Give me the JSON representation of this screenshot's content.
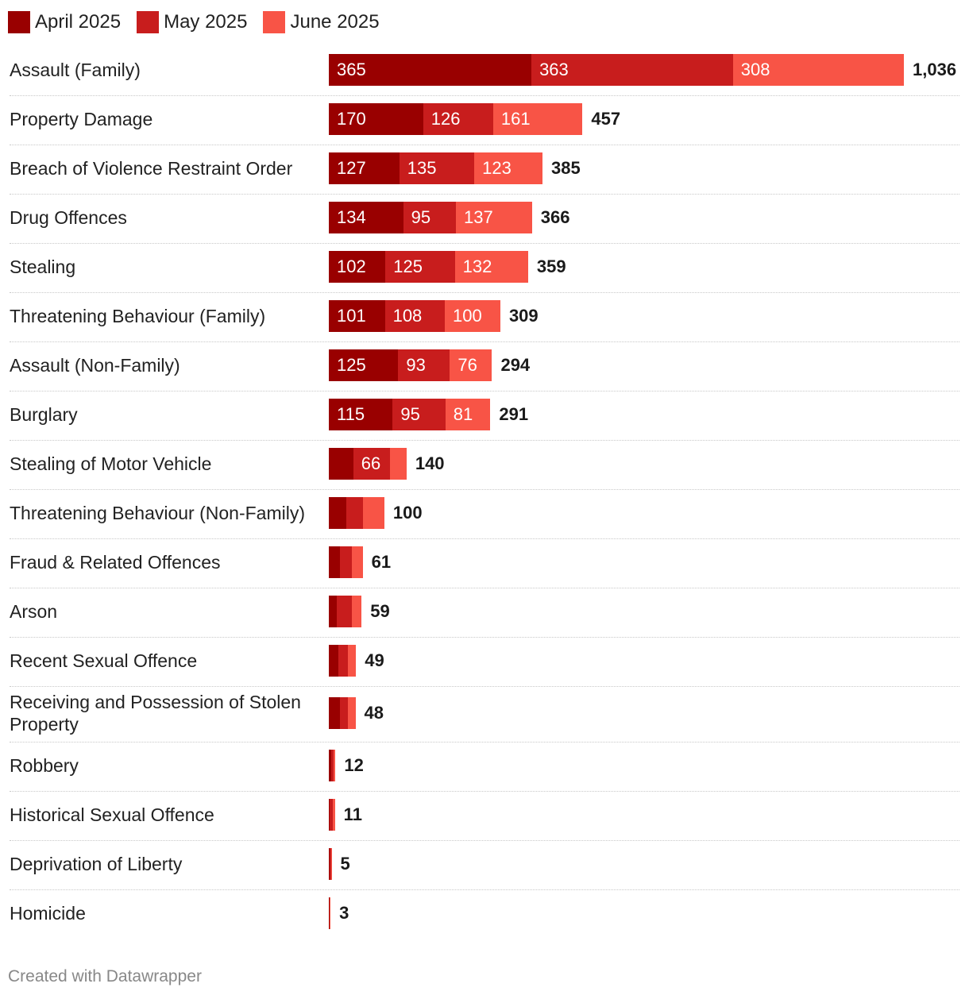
{
  "legend": {
    "items": [
      {
        "label": "April 2025",
        "color": "#990000"
      },
      {
        "label": "May 2025",
        "color": "#c81d1d"
      },
      {
        "label": "June 2025",
        "color": "#f85446"
      }
    ]
  },
  "chart_data": {
    "type": "bar",
    "orientation": "horizontal",
    "stacked": true,
    "title": "",
    "xlabel": "",
    "ylabel": "",
    "xlim": [
      0,
      1036
    ],
    "categories": [
      "Assault (Family)",
      "Property Damage",
      "Breach of Violence Restraint Order",
      "Drug Offences",
      "Stealing",
      "Threatening Behaviour (Family)",
      "Assault (Non-Family)",
      "Burglary",
      "Stealing of Motor Vehicle",
      "Threatening Behaviour (Non-Family)",
      "Fraud & Related Offences",
      "Arson",
      "Recent Sexual Offence",
      "Receiving and Possession of Stolen Property",
      "Robbery",
      "Historical Sexual Offence",
      "Deprivation of Liberty",
      "Homicide"
    ],
    "series": [
      {
        "name": "April 2025",
        "color": "#990000",
        "values": [
          365,
          170,
          127,
          134,
          102,
          101,
          125,
          115,
          44,
          32,
          20,
          14,
          17,
          20,
          4,
          2,
          1,
          1
        ]
      },
      {
        "name": "May 2025",
        "color": "#c81d1d",
        "values": [
          363,
          126,
          135,
          95,
          125,
          108,
          93,
          95,
          66,
          29,
          21,
          27,
          17,
          14,
          5,
          5,
          3,
          1
        ]
      },
      {
        "name": "June 2025",
        "color": "#f85446",
        "values": [
          308,
          161,
          123,
          137,
          132,
          100,
          76,
          81,
          30,
          39,
          20,
          18,
          15,
          14,
          3,
          4,
          1,
          1
        ]
      }
    ],
    "totals": [
      "1,036",
      "457",
      "385",
      "366",
      "359",
      "309",
      "294",
      "291",
      "140",
      "100",
      "61",
      "59",
      "49",
      "48",
      "12",
      "11",
      "5",
      "3"
    ],
    "segment_labels": [
      [
        "365",
        "363",
        "308"
      ],
      [
        "170",
        "126",
        "161"
      ],
      [
        "127",
        "135",
        "123"
      ],
      [
        "134",
        "95",
        "137"
      ],
      [
        "102",
        "125",
        "132"
      ],
      [
        "101",
        "108",
        "100"
      ],
      [
        "125",
        "93",
        "76"
      ],
      [
        "115",
        "95",
        "81"
      ],
      [
        "",
        "66",
        ""
      ],
      [
        "",
        "",
        ""
      ],
      [
        "",
        "",
        ""
      ],
      [
        "",
        "",
        ""
      ],
      [
        "",
        "",
        ""
      ],
      [
        "",
        "",
        ""
      ],
      [
        "",
        "",
        ""
      ],
      [
        "",
        "",
        ""
      ],
      [
        "",
        "",
        ""
      ],
      [
        "",
        "",
        ""
      ]
    ]
  },
  "footer": {
    "credit": "Created with Datawrapper"
  }
}
